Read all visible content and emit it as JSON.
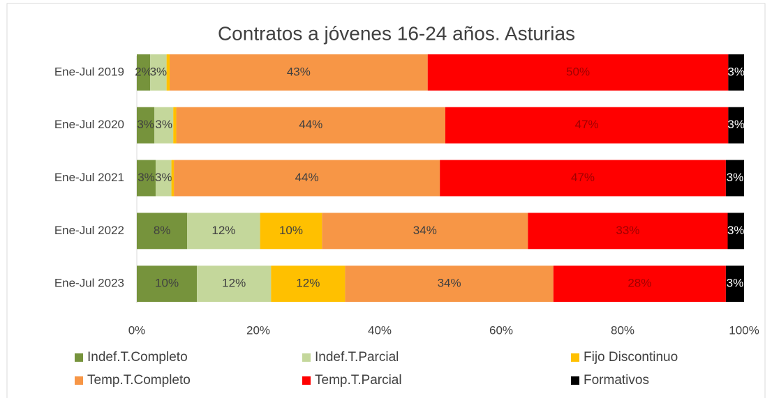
{
  "chart_data": {
    "type": "stacked_bar_horizontal",
    "title": "Contratos a jóvenes 16-24 años. Asturias",
    "categories": [
      "Ene-Jul 2019",
      "Ene-Jul 2020",
      "Ene-Jul 2021",
      "Ene-Jul 2022",
      "Ene-Jul 2023"
    ],
    "series": [
      {
        "name": "Indef.T.Completo",
        "color": "#76933c",
        "values": [
          2.2,
          2.9,
          3.1,
          8.3,
          9.9
        ],
        "value_labels": [
          "2%",
          "3%",
          "3%",
          "8%",
          "10%"
        ]
      },
      {
        "name": "Indef.T.Parcial",
        "color": "#c4d79b",
        "values": [
          2.7,
          3.1,
          2.6,
          12.0,
          12.2
        ],
        "value_labels": [
          "3%",
          "3%",
          "3%",
          "12%",
          "12%"
        ]
      },
      {
        "name": "Fijo Discontinuo",
        "color": "#ffc000",
        "values": [
          0.5,
          0.5,
          0.4,
          10.2,
          12.2
        ],
        "value_labels": [
          null,
          null,
          null,
          "10%",
          "12%"
        ]
      },
      {
        "name": "Temp.T.Completo",
        "color": "#f79646",
        "values": [
          42.5,
          44.3,
          43.8,
          33.9,
          34.3
        ],
        "value_labels": [
          "43%",
          "44%",
          "44%",
          "34%",
          "34%"
        ]
      },
      {
        "name": "Temp.T.Parcial",
        "color": "#ff0000",
        "values": [
          49.5,
          46.6,
          47.1,
          32.9,
          28.4
        ],
        "value_labels": [
          "50%",
          "47%",
          "47%",
          "33%",
          "28%"
        ]
      },
      {
        "name": "Formativos",
        "color": "#000000",
        "values": [
          2.6,
          2.6,
          3.0,
          2.7,
          3.0
        ],
        "value_labels": [
          "3%",
          "3%",
          "3%",
          "3%",
          "3%"
        ]
      }
    ],
    "xlim": [
      0,
      100
    ],
    "xticks": [
      {
        "value": 0,
        "label": "0%"
      },
      {
        "value": 20,
        "label": "20%"
      },
      {
        "value": 40,
        "label": "40%"
      },
      {
        "value": 60,
        "label": "60%"
      },
      {
        "value": 80,
        "label": "80%"
      },
      {
        "value": 100,
        "label": "100%"
      }
    ]
  }
}
